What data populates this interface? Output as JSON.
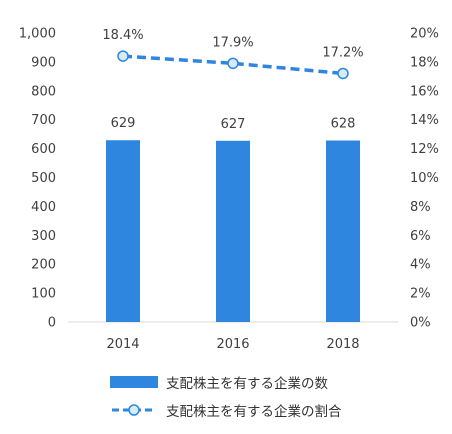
{
  "chart_data": {
    "type": "bar",
    "categories": [
      "2014",
      "2016",
      "2018"
    ],
    "bar_series": {
      "name": "支配株主を有する企業の数",
      "values": [
        629,
        627,
        628
      ],
      "labels": [
        "629",
        "627",
        "628"
      ],
      "color": "#2e86de"
    },
    "line_series": {
      "name": "支配株主を有する企業の割合",
      "values": [
        18.4,
        17.9,
        17.2
      ],
      "labels": [
        "18.4%",
        "17.9%",
        "17.2%"
      ],
      "color": "#2e86de",
      "style": "dashed",
      "marker_fill": "#d6ecfb"
    },
    "y_left": {
      "ylim": [
        0,
        1000
      ],
      "ticks": [
        "0",
        "100",
        "200",
        "300",
        "400",
        "500",
        "600",
        "700",
        "800",
        "900",
        "1,000"
      ]
    },
    "y_right": {
      "ylim": [
        0,
        20
      ],
      "ticks": [
        "0%",
        "2%",
        "4%",
        "6%",
        "8%",
        "10%",
        "12%",
        "14%",
        "16%",
        "18%",
        "20%"
      ]
    },
    "grid": false,
    "legend_position": "bottom"
  }
}
